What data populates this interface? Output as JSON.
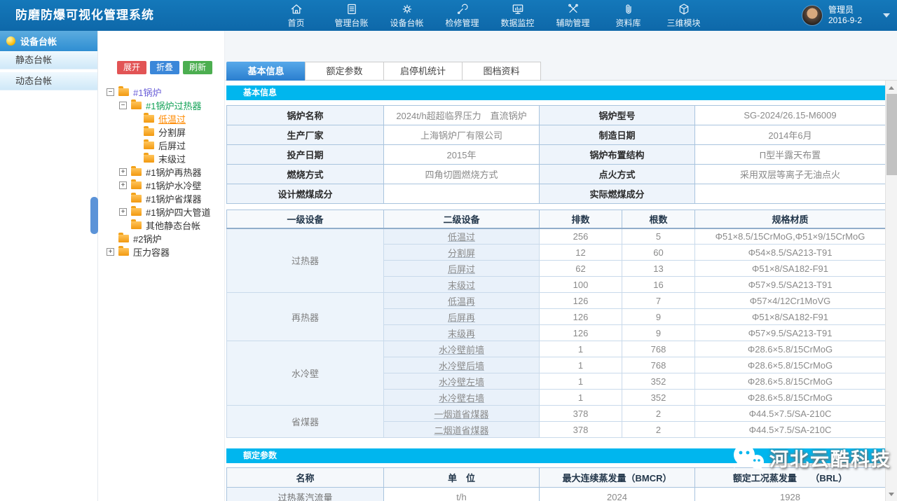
{
  "app": {
    "title": "防磨防爆可视化管理系统"
  },
  "topnav": {
    "items": [
      {
        "id": "home",
        "label": "首页",
        "icon": "home-icon"
      },
      {
        "id": "ledger",
        "label": "管理台账",
        "icon": "ledger-icon"
      },
      {
        "id": "equipment",
        "label": "设备台帐",
        "icon": "gear-icon"
      },
      {
        "id": "maintenance",
        "label": "检修管理",
        "icon": "wrench-icon"
      },
      {
        "id": "monitoring",
        "label": "数据监控",
        "icon": "monitor-icon"
      },
      {
        "id": "auxiliary",
        "label": "辅助管理",
        "icon": "tools-icon"
      },
      {
        "id": "library",
        "label": "资料库",
        "icon": "paperclip-icon"
      },
      {
        "id": "3d-module",
        "label": "三维模块",
        "icon": "cube-icon"
      }
    ],
    "user": {
      "name": "管理员",
      "date": "2016-9-2"
    }
  },
  "sidebar": {
    "header": "设备台帐",
    "items": [
      {
        "id": "static",
        "label": "静态台帐"
      },
      {
        "id": "dynamic",
        "label": "动态台帐"
      }
    ]
  },
  "tree": {
    "buttons": [
      {
        "id": "expand",
        "label": "展开",
        "color": "#e25455"
      },
      {
        "id": "collapse",
        "label": "折叠",
        "color": "#3b87d9"
      },
      {
        "id": "refresh",
        "label": "刷新",
        "color": "#4cae50"
      }
    ],
    "nodes": [
      {
        "level": 0,
        "toggle": "minus",
        "label": "#1锅炉",
        "style": "purple"
      },
      {
        "level": 1,
        "toggle": "minus",
        "label": "#1锅炉过热器",
        "style": "green"
      },
      {
        "level": 2,
        "toggle": null,
        "label": "低温过",
        "style": "orange"
      },
      {
        "level": 2,
        "toggle": null,
        "label": "分割屏",
        "style": "normal"
      },
      {
        "level": 2,
        "toggle": null,
        "label": "后屏过",
        "style": "normal"
      },
      {
        "level": 2,
        "toggle": null,
        "label": "末级过",
        "style": "normal"
      },
      {
        "level": 1,
        "toggle": "plus",
        "label": "#1锅炉再热器",
        "style": "normal"
      },
      {
        "level": 1,
        "toggle": "plus",
        "label": "#1锅炉水冷壁",
        "style": "normal"
      },
      {
        "level": 1,
        "toggle": null,
        "label": "#1锅炉省煤器",
        "style": "normal"
      },
      {
        "level": 1,
        "toggle": "plus",
        "label": "#1锅炉四大管道",
        "style": "normal"
      },
      {
        "level": 1,
        "toggle": null,
        "label": "其他静态台帐",
        "style": "normal"
      },
      {
        "level": 0,
        "toggle": null,
        "label": "#2锅炉",
        "style": "normal"
      },
      {
        "level": 0,
        "toggle": "plus",
        "label": "压力容器",
        "style": "normal"
      }
    ]
  },
  "tabs": [
    {
      "id": "basic",
      "label": "基本信息",
      "active": true
    },
    {
      "id": "rated",
      "label": "额定参数",
      "active": false
    },
    {
      "id": "startstop",
      "label": "启停机统计",
      "active": false
    },
    {
      "id": "docs",
      "label": "图档资料",
      "active": false
    }
  ],
  "basic_info": {
    "section_title": "基本信息",
    "rows": [
      [
        "锅炉名称",
        "2024t/h超超临界压力　直流锅炉",
        "锅炉型号",
        "SG-2024/26.15-M6009"
      ],
      [
        "生产厂家",
        "上海锅炉厂有限公司",
        "制造日期",
        "2014年6月"
      ],
      [
        "投产日期",
        "2015年",
        "锅炉布置结构",
        "Π型半露天布置"
      ],
      [
        "燃烧方式",
        "四角切圆燃烧方式",
        "点火方式",
        "采用双层等离子无油点火"
      ],
      [
        "设计燃煤成分",
        "",
        "实际燃煤成分",
        ""
      ]
    ]
  },
  "equipment_table": {
    "headers": [
      "一级设备",
      "二级设备",
      "排数",
      "根数",
      "规格材质"
    ],
    "groups": [
      {
        "name": "过热器",
        "rows": [
          [
            "低温过",
            "256",
            "5",
            "Φ51×8.5/15CrMoG,Φ51×9/15CrMoG"
          ],
          [
            "分割屏",
            "12",
            "60",
            "Φ54×8.5/SA213-T91"
          ],
          [
            "后屏过",
            "62",
            "13",
            "Φ51×8/SA182-F91"
          ],
          [
            "末级过",
            "100",
            "16",
            "Φ57×9.5/SA213-T91"
          ]
        ]
      },
      {
        "name": "再热器",
        "rows": [
          [
            "低温再",
            "126",
            "7",
            "Φ57×4/12Cr1MoVG"
          ],
          [
            "后屏再",
            "126",
            "9",
            "Φ51×8/SA182-F91"
          ],
          [
            "末级再",
            "126",
            "9",
            "Φ57×9.5/SA213-T91"
          ]
        ]
      },
      {
        "name": "水冷壁",
        "rows": [
          [
            "水冷壁前墙",
            "1",
            "768",
            "Φ28.6×5.8/15CrMoG"
          ],
          [
            "水冷壁后墙",
            "1",
            "768",
            "Φ28.6×5.8/15CrMoG"
          ],
          [
            "水冷壁左墙",
            "1",
            "352",
            "Φ28.6×5.8/15CrMoG"
          ],
          [
            "水冷壁右墙",
            "1",
            "352",
            "Φ28.6×5.8/15CrMoG"
          ]
        ]
      },
      {
        "name": "省煤器",
        "rows": [
          [
            "一烟道省煤器",
            "378",
            "2",
            "Φ44.5×7.5/SA-210C"
          ],
          [
            "二烟道省煤器",
            "378",
            "2",
            "Φ44.5×7.5/SA-210C"
          ]
        ]
      }
    ]
  },
  "rated_params": {
    "section_title": "额定参数",
    "headers": [
      "名称",
      "单　位",
      "最大连续蒸发量（BMCR）",
      "额定工况蒸发量　　（BRL）"
    ],
    "rows": [
      [
        "过热蒸汽流量",
        "t/h",
        "2024",
        "1928"
      ]
    ]
  },
  "watermark": {
    "text": "河北云酷科技"
  },
  "colors": {
    "accent_cyan": "#00b6ee",
    "topbar_blue": "#1074b6",
    "tab_active_blue": "#2a7ecf"
  }
}
